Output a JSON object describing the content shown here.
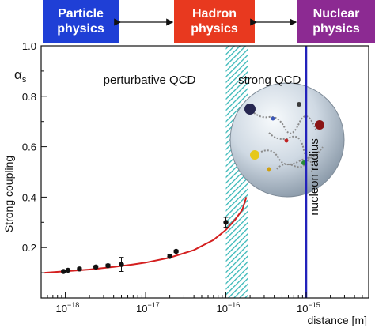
{
  "header": {
    "boxes": [
      {
        "lines": [
          "Particle",
          "physics"
        ],
        "color": "#1f3fd6"
      },
      {
        "lines": [
          "Hadron",
          "physics"
        ],
        "color": "#e8391f"
      },
      {
        "lines": [
          "Nuclear",
          "physics"
        ],
        "color": "#8c2a92"
      }
    ]
  },
  "colors": {
    "curve": "#d42020",
    "points": "#111111",
    "transition_hatch": "#38b8b8",
    "nucleon_line": "#2222bb",
    "sphere": "#c9d6e2"
  },
  "chart_data": {
    "type": "scatter",
    "title": "",
    "xlabel": "distance [m]",
    "ylabel": "Strong coupling",
    "ylabel_symbol_main": "α",
    "ylabel_symbol_sub": "s",
    "x_scale": "log",
    "xlim": [
      5e-19,
      6e-15
    ],
    "ylim": [
      0.0,
      1.0
    ],
    "x_ticks": [
      {
        "value": 1e-18,
        "base": "10",
        "exp": "−18"
      },
      {
        "value": 1e-17,
        "base": "10",
        "exp": "−17"
      },
      {
        "value": 1e-16,
        "base": "10",
        "exp": "−16"
      },
      {
        "value": 1e-15,
        "base": "10",
        "exp": "−15"
      }
    ],
    "y_ticks": [
      {
        "value": 0.2,
        "label": "0.2"
      },
      {
        "value": 0.4,
        "label": "0.4"
      },
      {
        "value": 0.6,
        "label": "0.6"
      },
      {
        "value": 0.8,
        "label": "0.8"
      },
      {
        "value": 1.0,
        "label": "1.0"
      }
    ],
    "series": [
      {
        "kind": "measurements",
        "x": [
          9.5e-19,
          1.08e-18,
          1.5e-18,
          2.4e-18,
          3.4e-18,
          5e-18,
          2e-17,
          2.4e-17,
          1e-16
        ],
        "y": [
          0.105,
          0.11,
          0.115,
          0.123,
          0.128,
          0.133,
          0.165,
          0.185,
          0.3
        ],
        "err": [
          0.005,
          0.005,
          0.005,
          0.005,
          0.006,
          0.028,
          0.006,
          0.005,
          0.02
        ]
      },
      {
        "kind": "theory-curve",
        "x": [
          5.5e-19,
          1e-18,
          2e-18,
          4e-18,
          7e-18,
          1e-17,
          2e-17,
          4e-17,
          7e-17,
          1e-16,
          1.3e-16,
          1.6e-16,
          1.8e-16
        ],
        "y": [
          0.1,
          0.106,
          0.113,
          0.123,
          0.133,
          0.14,
          0.16,
          0.19,
          0.23,
          0.27,
          0.31,
          0.35,
          0.4
        ]
      }
    ],
    "annotations": [
      {
        "text": "perturbative QCD",
        "x": 1.12e-17,
        "y": 0.85
      },
      {
        "text": "strong QCD",
        "x": 3.5e-16,
        "y": 0.85
      },
      {
        "text": "nucleon radius",
        "x": 1.4e-15,
        "y": 0.48,
        "rotation": -90
      }
    ],
    "transition_band": {
      "x_min": 1e-16,
      "x_max": 1.9e-16
    },
    "nucleon_line_x": 1e-15,
    "grid": false
  }
}
